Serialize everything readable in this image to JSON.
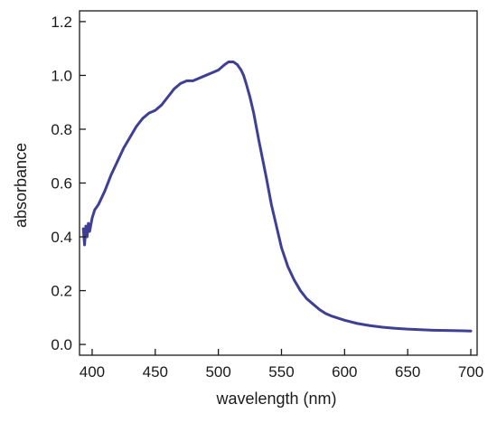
{
  "chart_data": {
    "type": "line",
    "title": "",
    "xlabel": "wavelength (nm)",
    "ylabel": "absorbance",
    "xlim": [
      390,
      705
    ],
    "ylim": [
      -0.04,
      1.24
    ],
    "xticks": [
      400,
      450,
      500,
      550,
      600,
      650,
      700
    ],
    "yticks": [
      0.0,
      0.2,
      0.4,
      0.6,
      0.8,
      1.0,
      1.2
    ],
    "xtick_labels": [
      "400",
      "450",
      "500",
      "550",
      "600",
      "650",
      "700"
    ],
    "ytick_labels": [
      "0.0",
      "0.2",
      "0.4",
      "0.6",
      "0.8",
      "1.0",
      "1.2"
    ],
    "grid": false,
    "legend": "none",
    "series": [
      {
        "color": "#3f3f95",
        "x": [
          393,
          394,
          395,
          396,
          397,
          398,
          400,
          402,
          405,
          410,
          415,
          420,
          425,
          430,
          435,
          440,
          445,
          450,
          455,
          460,
          465,
          470,
          475,
          480,
          485,
          490,
          495,
          500,
          505,
          508,
          510,
          512,
          515,
          518,
          520,
          522,
          525,
          528,
          530,
          532,
          535,
          538,
          540,
          542,
          545,
          548,
          550,
          555,
          560,
          565,
          570,
          575,
          580,
          585,
          590,
          600,
          610,
          620,
          630,
          640,
          650,
          660,
          670,
          680,
          690,
          700
        ],
        "y": [
          0.43,
          0.37,
          0.44,
          0.4,
          0.45,
          0.42,
          0.47,
          0.5,
          0.52,
          0.57,
          0.63,
          0.68,
          0.73,
          0.77,
          0.81,
          0.84,
          0.86,
          0.87,
          0.89,
          0.92,
          0.95,
          0.97,
          0.98,
          0.98,
          0.99,
          1.0,
          1.01,
          1.02,
          1.04,
          1.05,
          1.05,
          1.05,
          1.04,
          1.02,
          1.0,
          0.97,
          0.92,
          0.86,
          0.81,
          0.76,
          0.69,
          0.62,
          0.57,
          0.52,
          0.46,
          0.4,
          0.36,
          0.29,
          0.24,
          0.2,
          0.17,
          0.15,
          0.13,
          0.115,
          0.105,
          0.09,
          0.078,
          0.07,
          0.064,
          0.06,
          0.057,
          0.055,
          0.053,
          0.052,
          0.051,
          0.05
        ]
      }
    ]
  }
}
